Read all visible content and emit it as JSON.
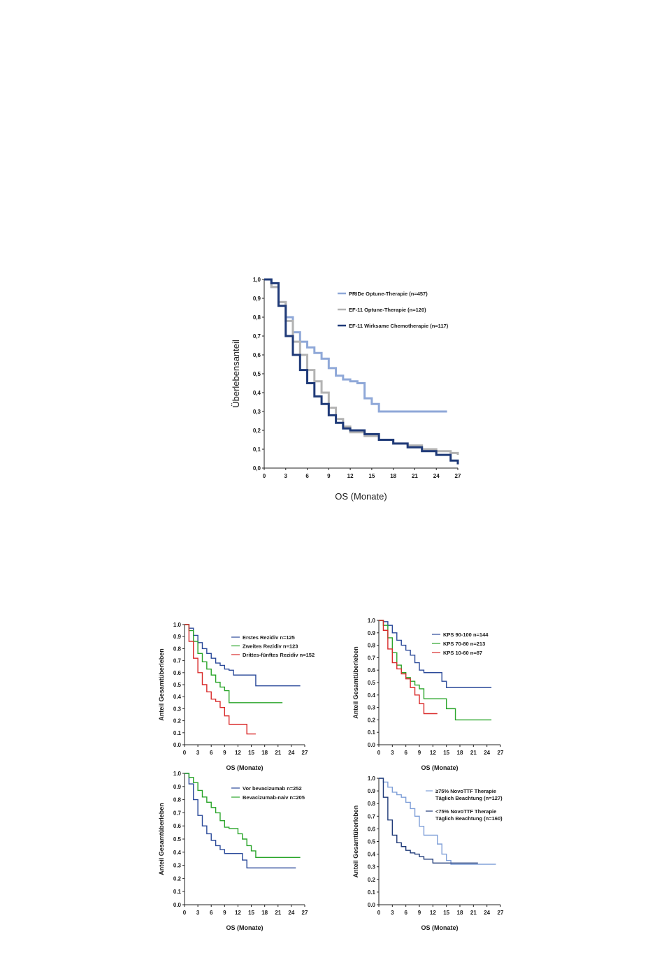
{
  "chart_data": [
    {
      "type": "line",
      "xlabel": "OS (Monate)",
      "ylabel": "Überlebensanteil",
      "xlim": [
        0,
        27
      ],
      "ylim": [
        0,
        1
      ],
      "x_ticks": [
        "0",
        "3",
        "6",
        "9",
        "12",
        "15",
        "18",
        "21",
        "24",
        "27"
      ],
      "y_ticks": [
        "0.0",
        "0.1",
        "0.2",
        "0.3",
        "0.4",
        "0.5",
        "0.6",
        "0.7",
        "0.8",
        "0.9",
        "1.0"
      ],
      "legend_position": "top-right",
      "series": [
        {
          "name": "PRIDe Optune-Therapie (n=457)",
          "color": "#8fa8d8",
          "width": 3,
          "x": [
            0,
            1,
            2,
            3,
            4,
            5,
            6,
            7,
            8,
            9,
            10,
            11,
            12,
            13,
            14,
            15,
            16,
            20,
            25.5
          ],
          "y": [
            1.0,
            0.96,
            0.88,
            0.8,
            0.72,
            0.67,
            0.64,
            0.61,
            0.58,
            0.53,
            0.49,
            0.47,
            0.46,
            0.45,
            0.37,
            0.34,
            0.3,
            0.3,
            0.3
          ]
        },
        {
          "name": "EF-11 Optune-Therapie (n=120)",
          "color": "#b3b3b3",
          "width": 3,
          "x": [
            0,
            1,
            2,
            3,
            4,
            5,
            6,
            7,
            8,
            9,
            10,
            11,
            12,
            14,
            16,
            18,
            20,
            22,
            24,
            26,
            27
          ],
          "y": [
            1.0,
            0.96,
            0.88,
            0.78,
            0.67,
            0.6,
            0.52,
            0.46,
            0.4,
            0.32,
            0.26,
            0.22,
            0.19,
            0.17,
            0.15,
            0.13,
            0.12,
            0.1,
            0.09,
            0.08,
            0.07
          ]
        },
        {
          "name": "EF-11 Wirksame Chemotherapie (n=117)",
          "color": "#1f3a78",
          "width": 3,
          "x": [
            0,
            1,
            2,
            3,
            4,
            5,
            6,
            7,
            8,
            9,
            10,
            11,
            12,
            14,
            16,
            18,
            20,
            22,
            24,
            26,
            27
          ],
          "y": [
            1.0,
            0.98,
            0.86,
            0.7,
            0.6,
            0.52,
            0.45,
            0.38,
            0.34,
            0.28,
            0.24,
            0.21,
            0.2,
            0.18,
            0.15,
            0.13,
            0.11,
            0.09,
            0.07,
            0.04,
            0.02
          ]
        }
      ]
    },
    {
      "type": "line",
      "xlabel": "OS (Monate)",
      "ylabel": "Anteil Gesamtüberleben",
      "xlim": [
        0,
        27
      ],
      "ylim": [
        0,
        1
      ],
      "x_ticks": [
        "0",
        "3",
        "6",
        "9",
        "12",
        "15",
        "18",
        "21",
        "24",
        "27"
      ],
      "y_ticks": [
        "0.0",
        "0.1",
        "0.2",
        "0.3",
        "0.4",
        "0.5",
        "0.6",
        "0.7",
        "0.8",
        "0.9",
        "1.0"
      ],
      "legend_position": "top-right",
      "series": [
        {
          "name": "Erstes Rezidiv n=125",
          "color": "#2b4a9a",
          "width": 1.4,
          "x": [
            0,
            1,
            2,
            3,
            4,
            5,
            6,
            7,
            8,
            9,
            10,
            11,
            12,
            13,
            14,
            16,
            20,
            26
          ],
          "y": [
            1.0,
            0.97,
            0.91,
            0.85,
            0.8,
            0.76,
            0.72,
            0.68,
            0.66,
            0.63,
            0.62,
            0.58,
            0.58,
            0.58,
            0.58,
            0.49,
            0.49,
            0.49
          ]
        },
        {
          "name": "Zweites Rezidiv n=123",
          "color": "#2aa52a",
          "width": 1.4,
          "x": [
            0,
            1,
            2,
            3,
            4,
            5,
            6,
            7,
            8,
            9,
            10,
            12,
            14,
            22
          ],
          "y": [
            1.0,
            0.95,
            0.86,
            0.76,
            0.69,
            0.63,
            0.58,
            0.52,
            0.48,
            0.45,
            0.35,
            0.35,
            0.35,
            0.35
          ]
        },
        {
          "name": "Drittes-fünftes Rezidiv n=152",
          "color": "#d92b2b",
          "width": 1.4,
          "x": [
            0,
            1,
            2,
            3,
            4,
            5,
            6,
            7,
            8,
            9,
            10,
            12,
            13,
            14,
            16
          ],
          "y": [
            1.0,
            0.86,
            0.72,
            0.6,
            0.5,
            0.44,
            0.38,
            0.36,
            0.31,
            0.24,
            0.17,
            0.17,
            0.17,
            0.09,
            0.09
          ]
        }
      ]
    },
    {
      "type": "line",
      "xlabel": "OS (Monate)",
      "ylabel": "Anteil Gesamtüberleben",
      "xlim": [
        0,
        27
      ],
      "ylim": [
        0,
        1
      ],
      "x_ticks": [
        "0",
        "3",
        "6",
        "9",
        "12",
        "15",
        "18",
        "21",
        "24",
        "27"
      ],
      "y_ticks": [
        "0.0",
        "0.1",
        "0.2",
        "0.3",
        "0.4",
        "0.5",
        "0.6",
        "0.7",
        "0.8",
        "0.9",
        "1.0"
      ],
      "legend_position": "top-right",
      "series": [
        {
          "name": "KPS 90-100 n=144",
          "color": "#2b4a9a",
          "width": 1.4,
          "x": [
            0,
            1,
            2,
            3,
            4,
            5,
            6,
            7,
            8,
            9,
            10,
            11,
            12,
            14,
            15,
            20,
            25
          ],
          "y": [
            1.0,
            0.99,
            0.96,
            0.9,
            0.84,
            0.8,
            0.76,
            0.72,
            0.66,
            0.6,
            0.58,
            0.58,
            0.58,
            0.51,
            0.46,
            0.46,
            0.46
          ]
        },
        {
          "name": "KPS 70-80 n=213",
          "color": "#2aa52a",
          "width": 1.4,
          "x": [
            0,
            1,
            2,
            3,
            4,
            5,
            6,
            7,
            8,
            9,
            10,
            13,
            15,
            17,
            20,
            25
          ],
          "y": [
            1.0,
            0.96,
            0.86,
            0.74,
            0.64,
            0.58,
            0.54,
            0.51,
            0.48,
            0.45,
            0.37,
            0.37,
            0.29,
            0.2,
            0.2,
            0.2
          ]
        },
        {
          "name": "KPS 10-60 n=87",
          "color": "#d92b2b",
          "width": 1.4,
          "x": [
            0,
            1,
            2,
            3,
            4,
            5,
            6,
            7,
            8,
            9,
            10,
            13
          ],
          "y": [
            1.0,
            0.92,
            0.77,
            0.66,
            0.61,
            0.57,
            0.53,
            0.46,
            0.4,
            0.33,
            0.25,
            0.25
          ]
        }
      ]
    },
    {
      "type": "line",
      "xlabel": "OS (Monate)",
      "ylabel": "Anteil Gesamtüberleben",
      "xlim": [
        0,
        27
      ],
      "ylim": [
        0,
        1
      ],
      "x_ticks": [
        "0",
        "3",
        "6",
        "9",
        "12",
        "15",
        "18",
        "21",
        "24",
        "27"
      ],
      "y_ticks": [
        "0.0",
        "0.1",
        "0.2",
        "0.3",
        "0.4",
        "0.5",
        "0.6",
        "0.7",
        "0.8",
        "0.9",
        "1.0"
      ],
      "legend_position": "top-right",
      "series": [
        {
          "name": "Vor bevacizumab n=252",
          "color": "#2b4a9a",
          "width": 1.4,
          "x": [
            0,
            1,
            2,
            3,
            4,
            5,
            6,
            7,
            8,
            9,
            10,
            12,
            13,
            14,
            18,
            25
          ],
          "y": [
            1.0,
            0.92,
            0.8,
            0.68,
            0.6,
            0.54,
            0.49,
            0.45,
            0.42,
            0.39,
            0.39,
            0.39,
            0.34,
            0.28,
            0.28,
            0.28
          ]
        },
        {
          "name": "Bevacizumab-naiv n=205",
          "color": "#2aa52a",
          "width": 1.4,
          "x": [
            0,
            1,
            2,
            3,
            4,
            5,
            6,
            7,
            8,
            9,
            10,
            12,
            13,
            14,
            15,
            16,
            20,
            26
          ],
          "y": [
            1.0,
            0.97,
            0.93,
            0.87,
            0.82,
            0.78,
            0.74,
            0.7,
            0.64,
            0.59,
            0.58,
            0.54,
            0.5,
            0.45,
            0.41,
            0.36,
            0.36,
            0.36
          ]
        }
      ]
    },
    {
      "type": "line",
      "xlabel": "OS (Monate)",
      "ylabel": "Anteil Gesamtüberleben",
      "xlim": [
        0,
        27
      ],
      "ylim": [
        0,
        1
      ],
      "x_ticks": [
        "0",
        "3",
        "6",
        "9",
        "12",
        "15",
        "18",
        "21",
        "24",
        "27"
      ],
      "y_ticks": [
        "0.0",
        "0.1",
        "0.2",
        "0.3",
        "0.4",
        "0.5",
        "0.6",
        "0.7",
        "0.8",
        "0.9",
        "1.0"
      ],
      "legend_position": "top-right",
      "series": [
        {
          "name": "≥75% NovoTTF Therapie\nTäglich Beachtung (n=127)",
          "color": "#7f9fd8",
          "width": 1.4,
          "x": [
            0,
            1,
            2,
            3,
            4,
            5,
            6,
            7,
            8,
            9,
            10,
            12,
            13,
            14,
            15,
            16,
            20,
            26
          ],
          "y": [
            1.0,
            0.97,
            0.93,
            0.89,
            0.87,
            0.85,
            0.81,
            0.76,
            0.7,
            0.62,
            0.55,
            0.55,
            0.48,
            0.4,
            0.35,
            0.32,
            0.32,
            0.32
          ]
        },
        {
          "name": "<75% NovoTTF Therapie\nTäglich Beachtung (n=160)",
          "color": "#1f3a78",
          "width": 1.4,
          "x": [
            0,
            1,
            2,
            3,
            4,
            5,
            6,
            7,
            8,
            9,
            10,
            11,
            12,
            15,
            18,
            22
          ],
          "y": [
            1.0,
            0.85,
            0.67,
            0.55,
            0.49,
            0.46,
            0.43,
            0.41,
            0.4,
            0.38,
            0.36,
            0.36,
            0.33,
            0.33,
            0.33,
            0.33
          ]
        }
      ]
    }
  ]
}
